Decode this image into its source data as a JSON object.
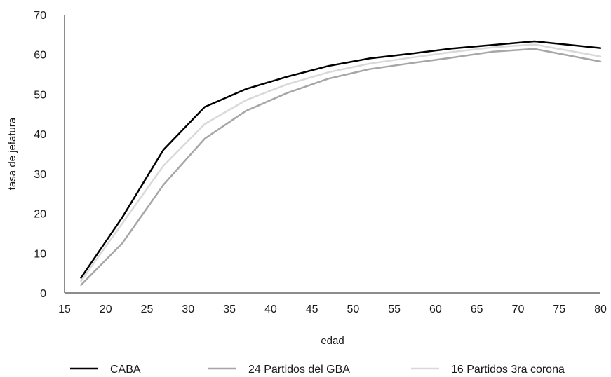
{
  "chart_data": {
    "type": "line",
    "title": "",
    "xlabel": "edad",
    "ylabel": "tasa de jefatura",
    "xlim": [
      15,
      80
    ],
    "ylim": [
      0,
      70
    ],
    "x_ticks": [
      15,
      20,
      25,
      30,
      35,
      40,
      45,
      50,
      55,
      60,
      65,
      70,
      75,
      80
    ],
    "y_ticks": [
      0,
      10,
      20,
      30,
      40,
      50,
      60,
      70
    ],
    "grid": false,
    "legend_position": "bottom",
    "x": [
      17,
      22,
      27,
      32,
      37,
      42,
      47,
      52,
      57,
      62,
      67,
      72,
      80
    ],
    "series": [
      {
        "name": "CABA",
        "color": "#000000",
        "values": [
          3.8,
          19,
          36,
          46.8,
          51.3,
          54.4,
          57.1,
          59,
          60.2,
          61.5,
          62.4,
          63.3,
          61.6
        ]
      },
      {
        "name": "24 Partidos del GBA",
        "color": "#a6a6a6",
        "values": [
          2,
          12.5,
          27.2,
          38.8,
          45.8,
          50.3,
          53.9,
          56.3,
          57.8,
          59.2,
          60.7,
          61.4,
          58.2
        ]
      },
      {
        "name": "16 Partidos 3ra corona",
        "color": "#d9d9d9",
        "values": [
          3,
          17.5,
          32,
          42.5,
          48.5,
          52.5,
          55.5,
          57.7,
          59.2,
          60.6,
          61.8,
          62.5,
          59.5
        ]
      }
    ]
  }
}
